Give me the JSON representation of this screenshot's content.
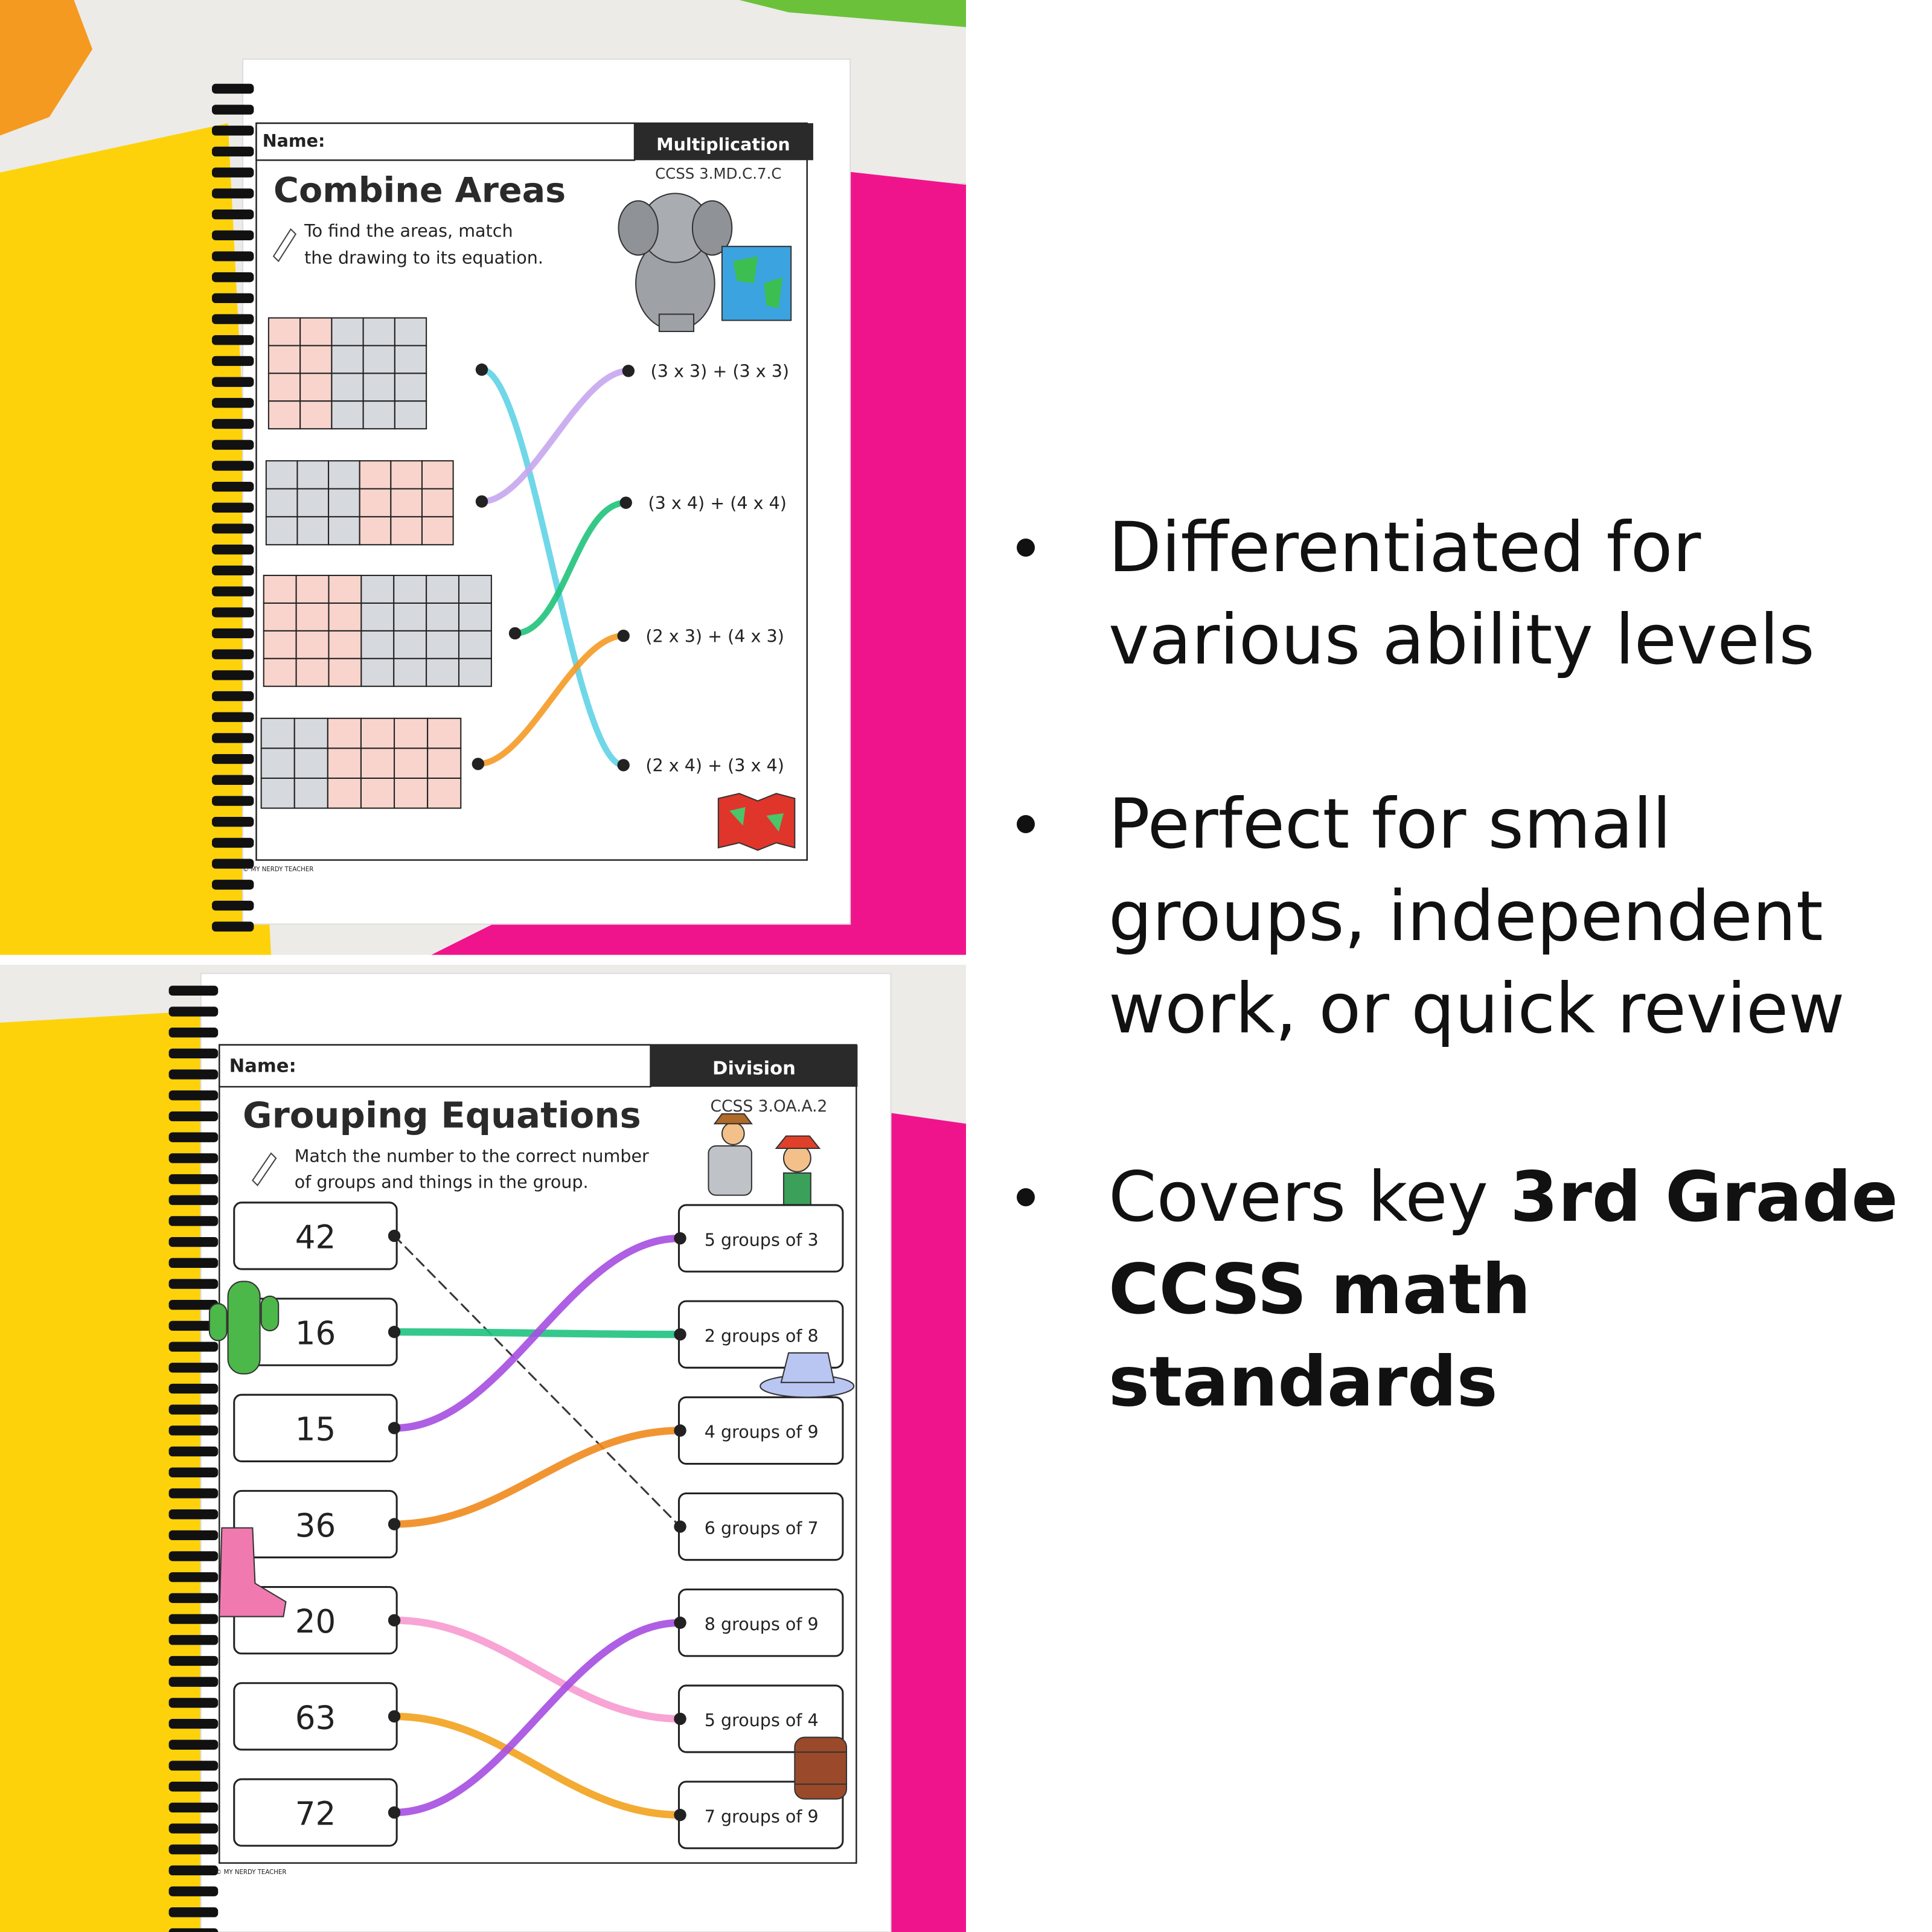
{
  "worksheets": [
    {
      "name_label": "Name:",
      "subject": "Multiplication",
      "standard": "CCSS 3.MD.C.7.C",
      "title": "Combine Areas",
      "instructions": [
        "To find the areas, match",
        "the drawing to its equation."
      ],
      "answers": [
        "(3 x 3) + (3 x 3)",
        "(3 x 4) + (4 x 4)",
        "(2 x 3) + (4 x 3)",
        "(2 x 4) + (3 x 4)"
      ],
      "copyright": "© MY NERDY TEACHER"
    },
    {
      "name_label": "Name:",
      "subject": "Division",
      "standard": "CCSS 3.OA.A.2",
      "title": "Grouping Equations",
      "instructions": [
        "Match the number to the correct number",
        "of groups and things in the group."
      ],
      "numbers": [
        42,
        16,
        15,
        36,
        20,
        63,
        72
      ],
      "answers": [
        "5 groups of 3",
        "2 groups of 8",
        "4 groups of 9",
        "6 groups of 7",
        "8 groups of 9",
        "5 groups of 4",
        "7 groups of 9"
      ],
      "copyright": "© MY NERDY TEACHER"
    }
  ],
  "bullets": [
    {
      "lines": [
        "Differentiated for",
        "various ability levels"
      ]
    },
    {
      "lines": [
        "Perfect for small",
        "groups, independent",
        "work, or quick review"
      ]
    },
    {
      "text": "Covers key",
      "bold_lines": [
        "3rd Grade",
        "CCSS math",
        "standards"
      ]
    }
  ]
}
